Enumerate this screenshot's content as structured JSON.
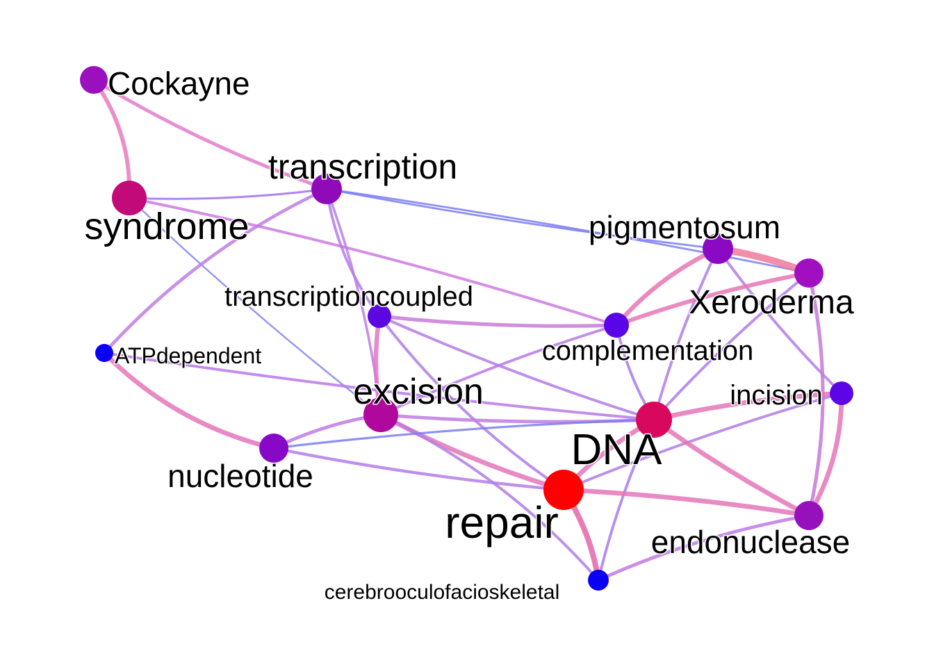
{
  "graph": {
    "nodes": [
      {
        "id": "Cockayne",
        "label": "Cockayne",
        "color": "#9b0fbf"
      },
      {
        "id": "transcription",
        "label": "transcription",
        "color": "#8f0ab8"
      },
      {
        "id": "syndrome",
        "label": "syndrome",
        "color": "#c20a78"
      },
      {
        "id": "pigmentosum",
        "label": "pigmentosum",
        "color": "#8a0ac4"
      },
      {
        "id": "Xeroderma",
        "label": "Xeroderma",
        "color": "#a010c0"
      },
      {
        "id": "transcriptioncoupled",
        "label": "transcriptioncoupled",
        "color": "#5c06e0"
      },
      {
        "id": "complementation",
        "label": "complementation",
        "color": "#5a05e8"
      },
      {
        "id": "ATPdependent",
        "label": "ATPdependent",
        "color": "#0a00f5"
      },
      {
        "id": "excision",
        "label": "excision",
        "color": "#b0089c"
      },
      {
        "id": "incision",
        "label": "incision",
        "color": "#5c05e6"
      },
      {
        "id": "DNA",
        "label": "DNA",
        "color": "#d8085e"
      },
      {
        "id": "nucleotide",
        "label": "nucleotide",
        "color": "#8808c8"
      },
      {
        "id": "repair",
        "label": "repair",
        "color": "#ff0000"
      },
      {
        "id": "endonuclease",
        "label": "endonuclease",
        "color": "#9610bc"
      },
      {
        "id": "cerebrooculofacioskeletal",
        "label": "cerebrooculofacioskeletal",
        "color": "#0a00f5"
      }
    ],
    "edges": [
      {
        "source": "Cockayne",
        "target": "syndrome",
        "weight": 3,
        "color": "#e87cbc"
      },
      {
        "source": "Cockayne",
        "target": "transcription",
        "weight": 2.5,
        "color": "#e07ccc"
      },
      {
        "source": "syndrome",
        "target": "transcription",
        "weight": 1.5,
        "color": "#a070ee"
      },
      {
        "source": "syndrome",
        "target": "excision",
        "weight": 1.2,
        "color": "#8080f4"
      },
      {
        "source": "syndrome",
        "target": "complementation",
        "weight": 2,
        "color": "#cc7ae0"
      },
      {
        "source": "transcription",
        "target": "pigmentosum",
        "weight": 1.4,
        "color": "#7a7cf2"
      },
      {
        "source": "transcription",
        "target": "Xeroderma",
        "weight": 1.4,
        "color": "#7a7cf2"
      },
      {
        "source": "transcription",
        "target": "ATPdependent",
        "weight": 2.4,
        "color": "#c07ce4"
      },
      {
        "source": "transcription",
        "target": "transcriptioncoupled",
        "weight": 2,
        "color": "#b47ce8"
      },
      {
        "source": "transcription",
        "target": "excision",
        "weight": 1.8,
        "color": "#b87ce8"
      },
      {
        "source": "pigmentosum",
        "target": "Xeroderma",
        "weight": 5,
        "color": "#f07a9a"
      },
      {
        "source": "pigmentosum",
        "target": "complementation",
        "weight": 3.2,
        "color": "#e876b4"
      },
      {
        "source": "pigmentosum",
        "target": "DNA",
        "weight": 2,
        "color": "#b07ce8"
      },
      {
        "source": "pigmentosum",
        "target": "incision",
        "weight": 2,
        "color": "#b47ce8"
      },
      {
        "source": "Xeroderma",
        "target": "complementation",
        "weight": 3,
        "color": "#e876b4"
      },
      {
        "source": "Xeroderma",
        "target": "DNA",
        "weight": 2,
        "color": "#b07ce8"
      },
      {
        "source": "Xeroderma",
        "target": "endonuclease",
        "weight": 2.6,
        "color": "#c67ad8"
      },
      {
        "source": "transcriptioncoupled",
        "target": "complementation",
        "weight": 2.6,
        "color": "#c87ad8"
      },
      {
        "source": "transcriptioncoupled",
        "target": "excision",
        "weight": 3.2,
        "color": "#e476c4"
      },
      {
        "source": "transcriptioncoupled",
        "target": "DNA",
        "weight": 2,
        "color": "#b47ce8"
      },
      {
        "source": "transcriptioncoupled",
        "target": "repair",
        "weight": 2,
        "color": "#b07ce8"
      },
      {
        "source": "complementation",
        "target": "DNA",
        "weight": 2,
        "color": "#a87cec"
      },
      {
        "source": "complementation",
        "target": "excision",
        "weight": 2,
        "color": "#b87ae8"
      },
      {
        "source": "ATPdependent",
        "target": "nucleotide",
        "weight": 3.4,
        "color": "#e476b8"
      },
      {
        "source": "ATPdependent",
        "target": "DNA",
        "weight": 2,
        "color": "#b87ae8"
      },
      {
        "source": "excision",
        "target": "DNA",
        "weight": 2.4,
        "color": "#c07ae4"
      },
      {
        "source": "excision",
        "target": "repair",
        "weight": 3.4,
        "color": "#e476b8"
      },
      {
        "source": "excision",
        "target": "nucleotide",
        "weight": 2.4,
        "color": "#c07ae4"
      },
      {
        "source": "excision",
        "target": "cerebrooculofacioskeletal",
        "weight": 2,
        "color": "#b07ce8"
      },
      {
        "source": "incision",
        "target": "DNA",
        "weight": 3.4,
        "color": "#e476b8"
      },
      {
        "source": "incision",
        "target": "endonuclease",
        "weight": 3.4,
        "color": "#e476b8"
      },
      {
        "source": "incision",
        "target": "repair",
        "weight": 2,
        "color": "#b07ce8"
      },
      {
        "source": "DNA",
        "target": "repair",
        "weight": 3.4,
        "color": "#e476b8"
      },
      {
        "source": "DNA",
        "target": "nucleotide",
        "weight": 1.6,
        "color": "#7a7cf2"
      },
      {
        "source": "DNA",
        "target": "endonuclease",
        "weight": 3.4,
        "color": "#e476b8"
      },
      {
        "source": "DNA",
        "target": "cerebrooculofacioskeletal",
        "weight": 2,
        "color": "#a87cec"
      },
      {
        "source": "nucleotide",
        "target": "repair",
        "weight": 2.2,
        "color": "#b47ce8"
      },
      {
        "source": "repair",
        "target": "endonuclease",
        "weight": 3.4,
        "color": "#e476b8"
      },
      {
        "source": "repair",
        "target": "cerebrooculofacioskeletal",
        "weight": 4,
        "color": "#e466a8"
      },
      {
        "source": "endonuclease",
        "target": "cerebrooculofacioskeletal",
        "weight": 2.4,
        "color": "#c07ae4"
      }
    ]
  }
}
